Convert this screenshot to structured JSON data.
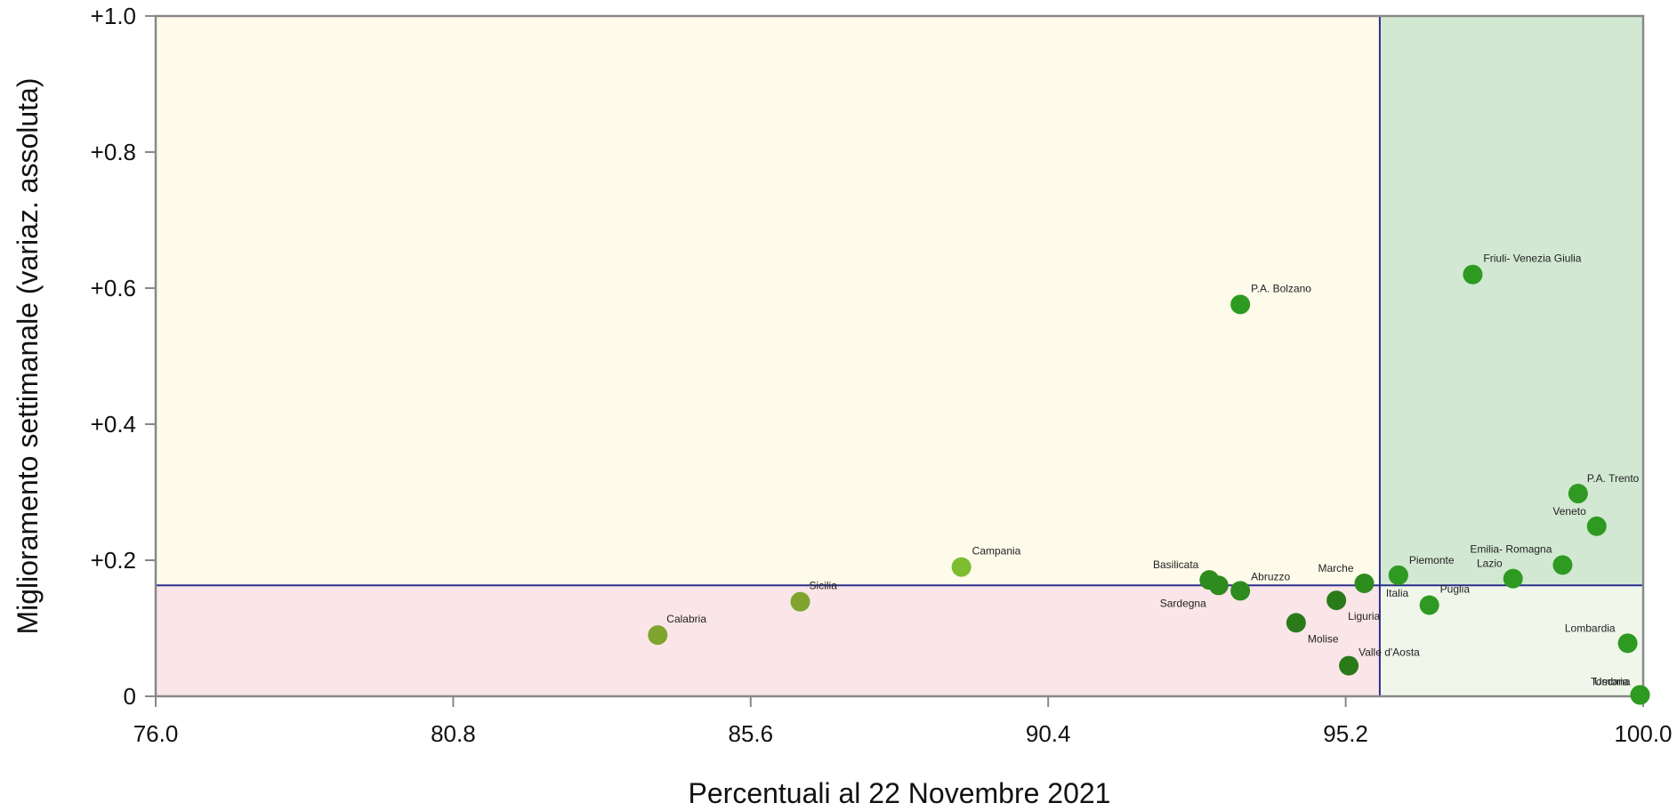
{
  "chart_data": {
    "type": "scatter",
    "xlabel": "Percentuali al 22 Novembre 2021",
    "ylabel": "Miglioramento settimanale (variaz. assoluta)",
    "xlim": [
      76.0,
      100.0
    ],
    "ylim": [
      0,
      1.0
    ],
    "x_ticks": [
      "76.0",
      "80.8",
      "85.6",
      "90.4",
      "95.2",
      "100.0"
    ],
    "y_ticks": [
      "0",
      "+0.2",
      "+0.4",
      "+0.6",
      "+0.8",
      "+1.0"
    ],
    "x_tick_values": [
      76.0,
      80.8,
      85.6,
      90.4,
      95.2,
      100.0
    ],
    "y_tick_values": [
      0,
      0.2,
      0.4,
      0.6,
      0.8,
      1.0
    ],
    "reference_lines": {
      "x": 95.75,
      "y": 0.163
    },
    "quadrant_colors": {
      "upper_left": "#fffbea",
      "lower_left": "#fae5e8",
      "upper_right": "#d2e8d2",
      "lower_right": "#f0f7ea"
    },
    "reference_line_color": "#2b2f8c",
    "frame_color": "#888888",
    "grid": false,
    "points": [
      {
        "label": "Calabria",
        "x": 84.1,
        "y": 0.09,
        "color": "#7fa52e"
      },
      {
        "label": "Sicilia",
        "x": 86.4,
        "y": 0.139,
        "color": "#7fa52e"
      },
      {
        "label": "Campania",
        "x": 89.0,
        "y": 0.19,
        "color": "#7dbd2e"
      },
      {
        "label": "P.A. Bolzano",
        "x": 93.5,
        "y": 0.576,
        "color": "#2e9a22"
      },
      {
        "label": "Basilicata",
        "x": 93.0,
        "y": 0.171,
        "color": "#2e8b1e"
      },
      {
        "label": "Sardegna",
        "x": 93.15,
        "y": 0.163,
        "color": "#2e8b1e"
      },
      {
        "label": "Abruzzo",
        "x": 93.5,
        "y": 0.155,
        "color": "#2e8b1e"
      },
      {
        "label": "Molise",
        "x": 94.4,
        "y": 0.108,
        "color": "#2a7a1a"
      },
      {
        "label": "Liguria",
        "x": 95.05,
        "y": 0.141,
        "color": "#2a7a1a"
      },
      {
        "label": "Valle d'Aosta",
        "x": 95.25,
        "y": 0.045,
        "color": "#2a7a1a"
      },
      {
        "label": "Marche",
        "x": 95.5,
        "y": 0.166,
        "color": "#2e8b1e"
      },
      {
        "label": "Italia",
        "x": 96.05,
        "y": 0.178,
        "color": "#2e9a22"
      },
      {
        "label": "Piemonte",
        "x": 96.05,
        "y": 0.178,
        "color": "#2e9a22"
      },
      {
        "label": "Puglia",
        "x": 96.55,
        "y": 0.134,
        "color": "#2e9a22"
      },
      {
        "label": "Friuli- Venezia Giulia",
        "x": 97.25,
        "y": 0.62,
        "color": "#2e9a22"
      },
      {
        "label": "Emilia- Romagna",
        "x": 98.7,
        "y": 0.193,
        "color": "#2e9a22"
      },
      {
        "label": "Lazio",
        "x": 97.9,
        "y": 0.173,
        "color": "#2e9a22"
      },
      {
        "label": "P.A. Trento",
        "x": 98.95,
        "y": 0.298,
        "color": "#2e9a22"
      },
      {
        "label": "Veneto",
        "x": 99.25,
        "y": 0.25,
        "color": "#2e9a22"
      },
      {
        "label": "Lombardia",
        "x": 99.75,
        "y": 0.078,
        "color": "#2e9a22"
      },
      {
        "label": "Toscana",
        "x": 99.95,
        "y": 0.002,
        "color": "#2e9a22"
      },
      {
        "label": "Umbria",
        "x": 99.95,
        "y": 0.002,
        "color": "#2e9a22"
      }
    ]
  }
}
